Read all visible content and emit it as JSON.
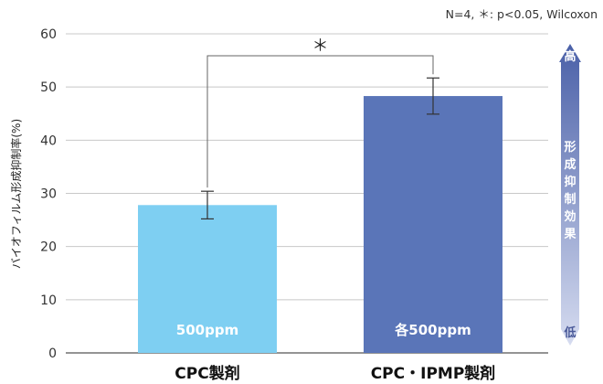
{
  "chart_data": {
    "type": "bar",
    "note": "N=4, ＊: p<0.05, Wilcoxon",
    "ylabel": "バイオフィルム形成抑制率(%)",
    "xlabel": "",
    "ylim": [
      0,
      60
    ],
    "yticks": [
      0,
      10,
      20,
      30,
      40,
      50,
      60
    ],
    "grid": true,
    "categories": [
      "CPC製剤",
      "CPC・IPMP製剤"
    ],
    "values": [
      27.8,
      48.3
    ],
    "error_bars": [
      2.6,
      3.4
    ],
    "bar_labels": [
      "500ppm",
      "各500ppm"
    ],
    "colors": [
      "#7ecff2",
      "#5a75b8"
    ],
    "significance": {
      "between": [
        0,
        1
      ],
      "label": "＊"
    },
    "effect_arrow": {
      "high_label": "高",
      "text": "形成抑制効果",
      "low_label": "低",
      "color_top": "#4a60a8",
      "color_bottom": "#d6dcf0"
    }
  }
}
